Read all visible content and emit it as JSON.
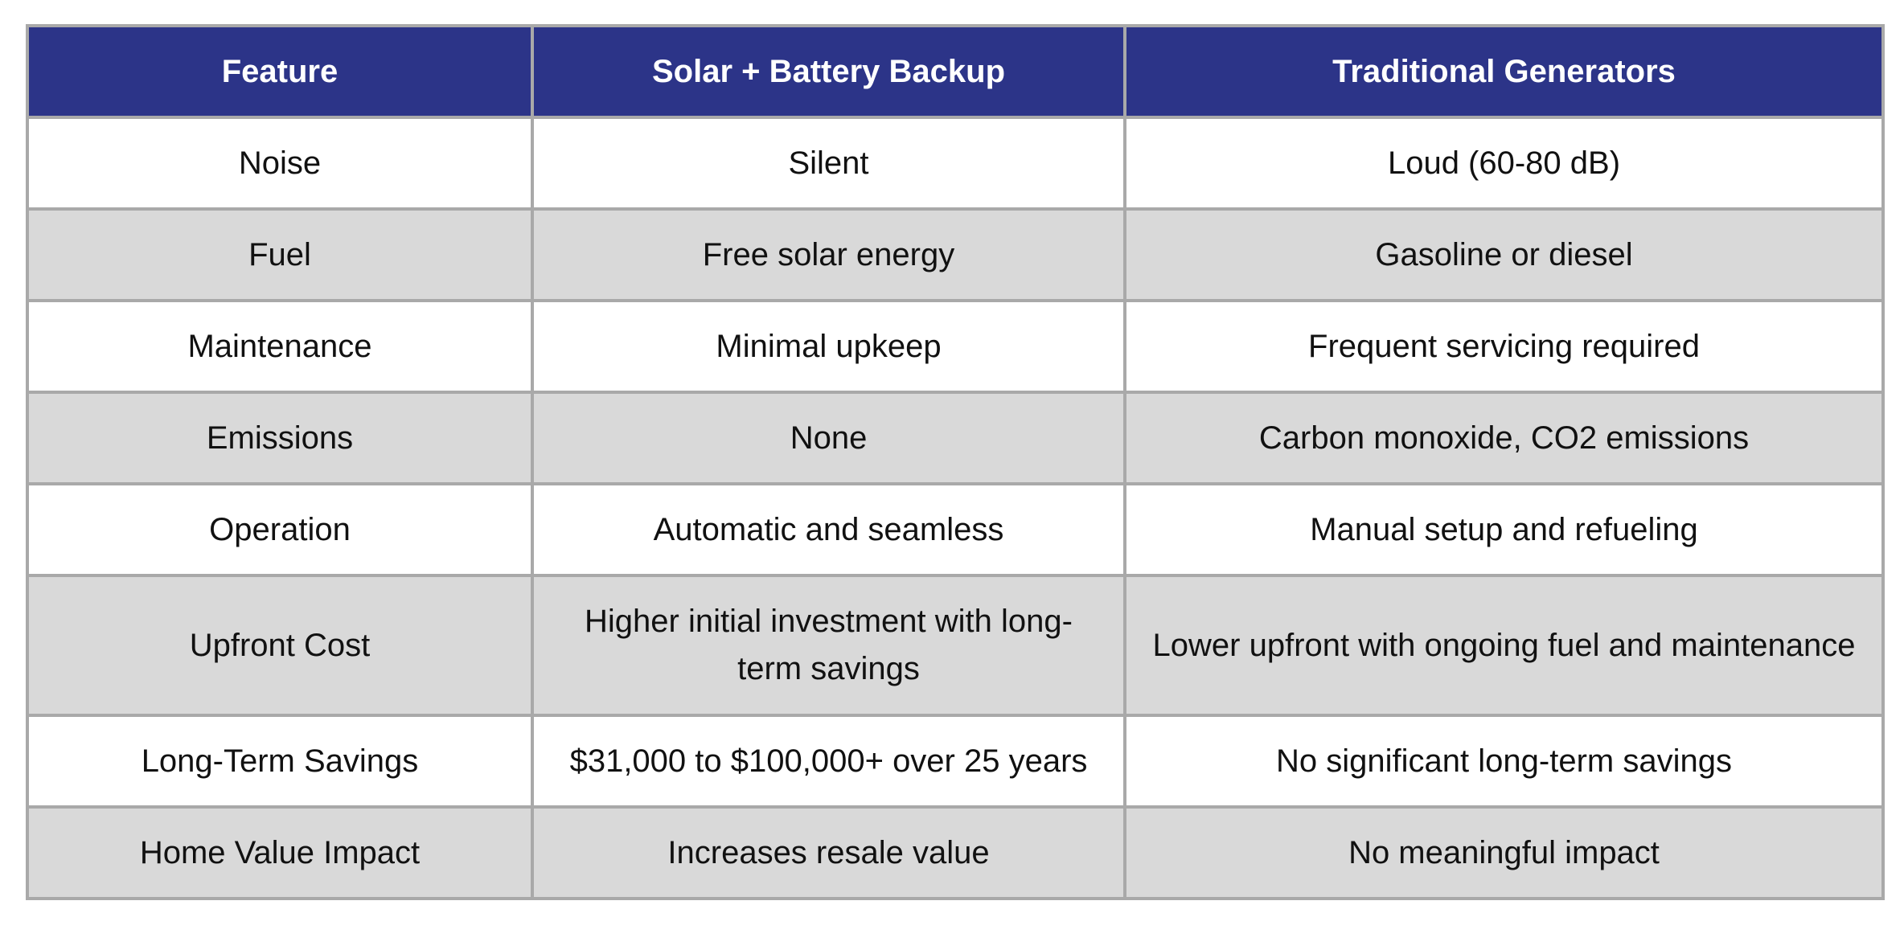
{
  "table": {
    "headers": [
      "Feature",
      "Solar + Battery Backup",
      "Traditional Generators"
    ],
    "rows": [
      [
        "Noise",
        "Silent",
        "Loud (60-80 dB)"
      ],
      [
        "Fuel",
        "Free solar energy",
        "Gasoline or diesel"
      ],
      [
        "Maintenance",
        "Minimal upkeep",
        "Frequent servicing required"
      ],
      [
        "Emissions",
        "None",
        "Carbon monoxide, CO2 emissions"
      ],
      [
        "Operation",
        "Automatic and seamless",
        "Manual setup and refueling"
      ],
      [
        "Upfront Cost",
        "Higher initial investment with long-term savings",
        "Lower upfront with ongoing fuel and maintenance"
      ],
      [
        "Long-Term Savings",
        "$31,000 to $100,000+ over 25 years",
        "No significant long-term savings"
      ],
      [
        "Home Value Impact",
        "Increases resale value",
        "No meaningful impact"
      ]
    ]
  },
  "colors": {
    "header_background": "#2c3488",
    "header_text": "#ffffff",
    "row_odd": "#ffffff",
    "row_even": "#d9d9d9",
    "border": "#a9a9a9"
  }
}
